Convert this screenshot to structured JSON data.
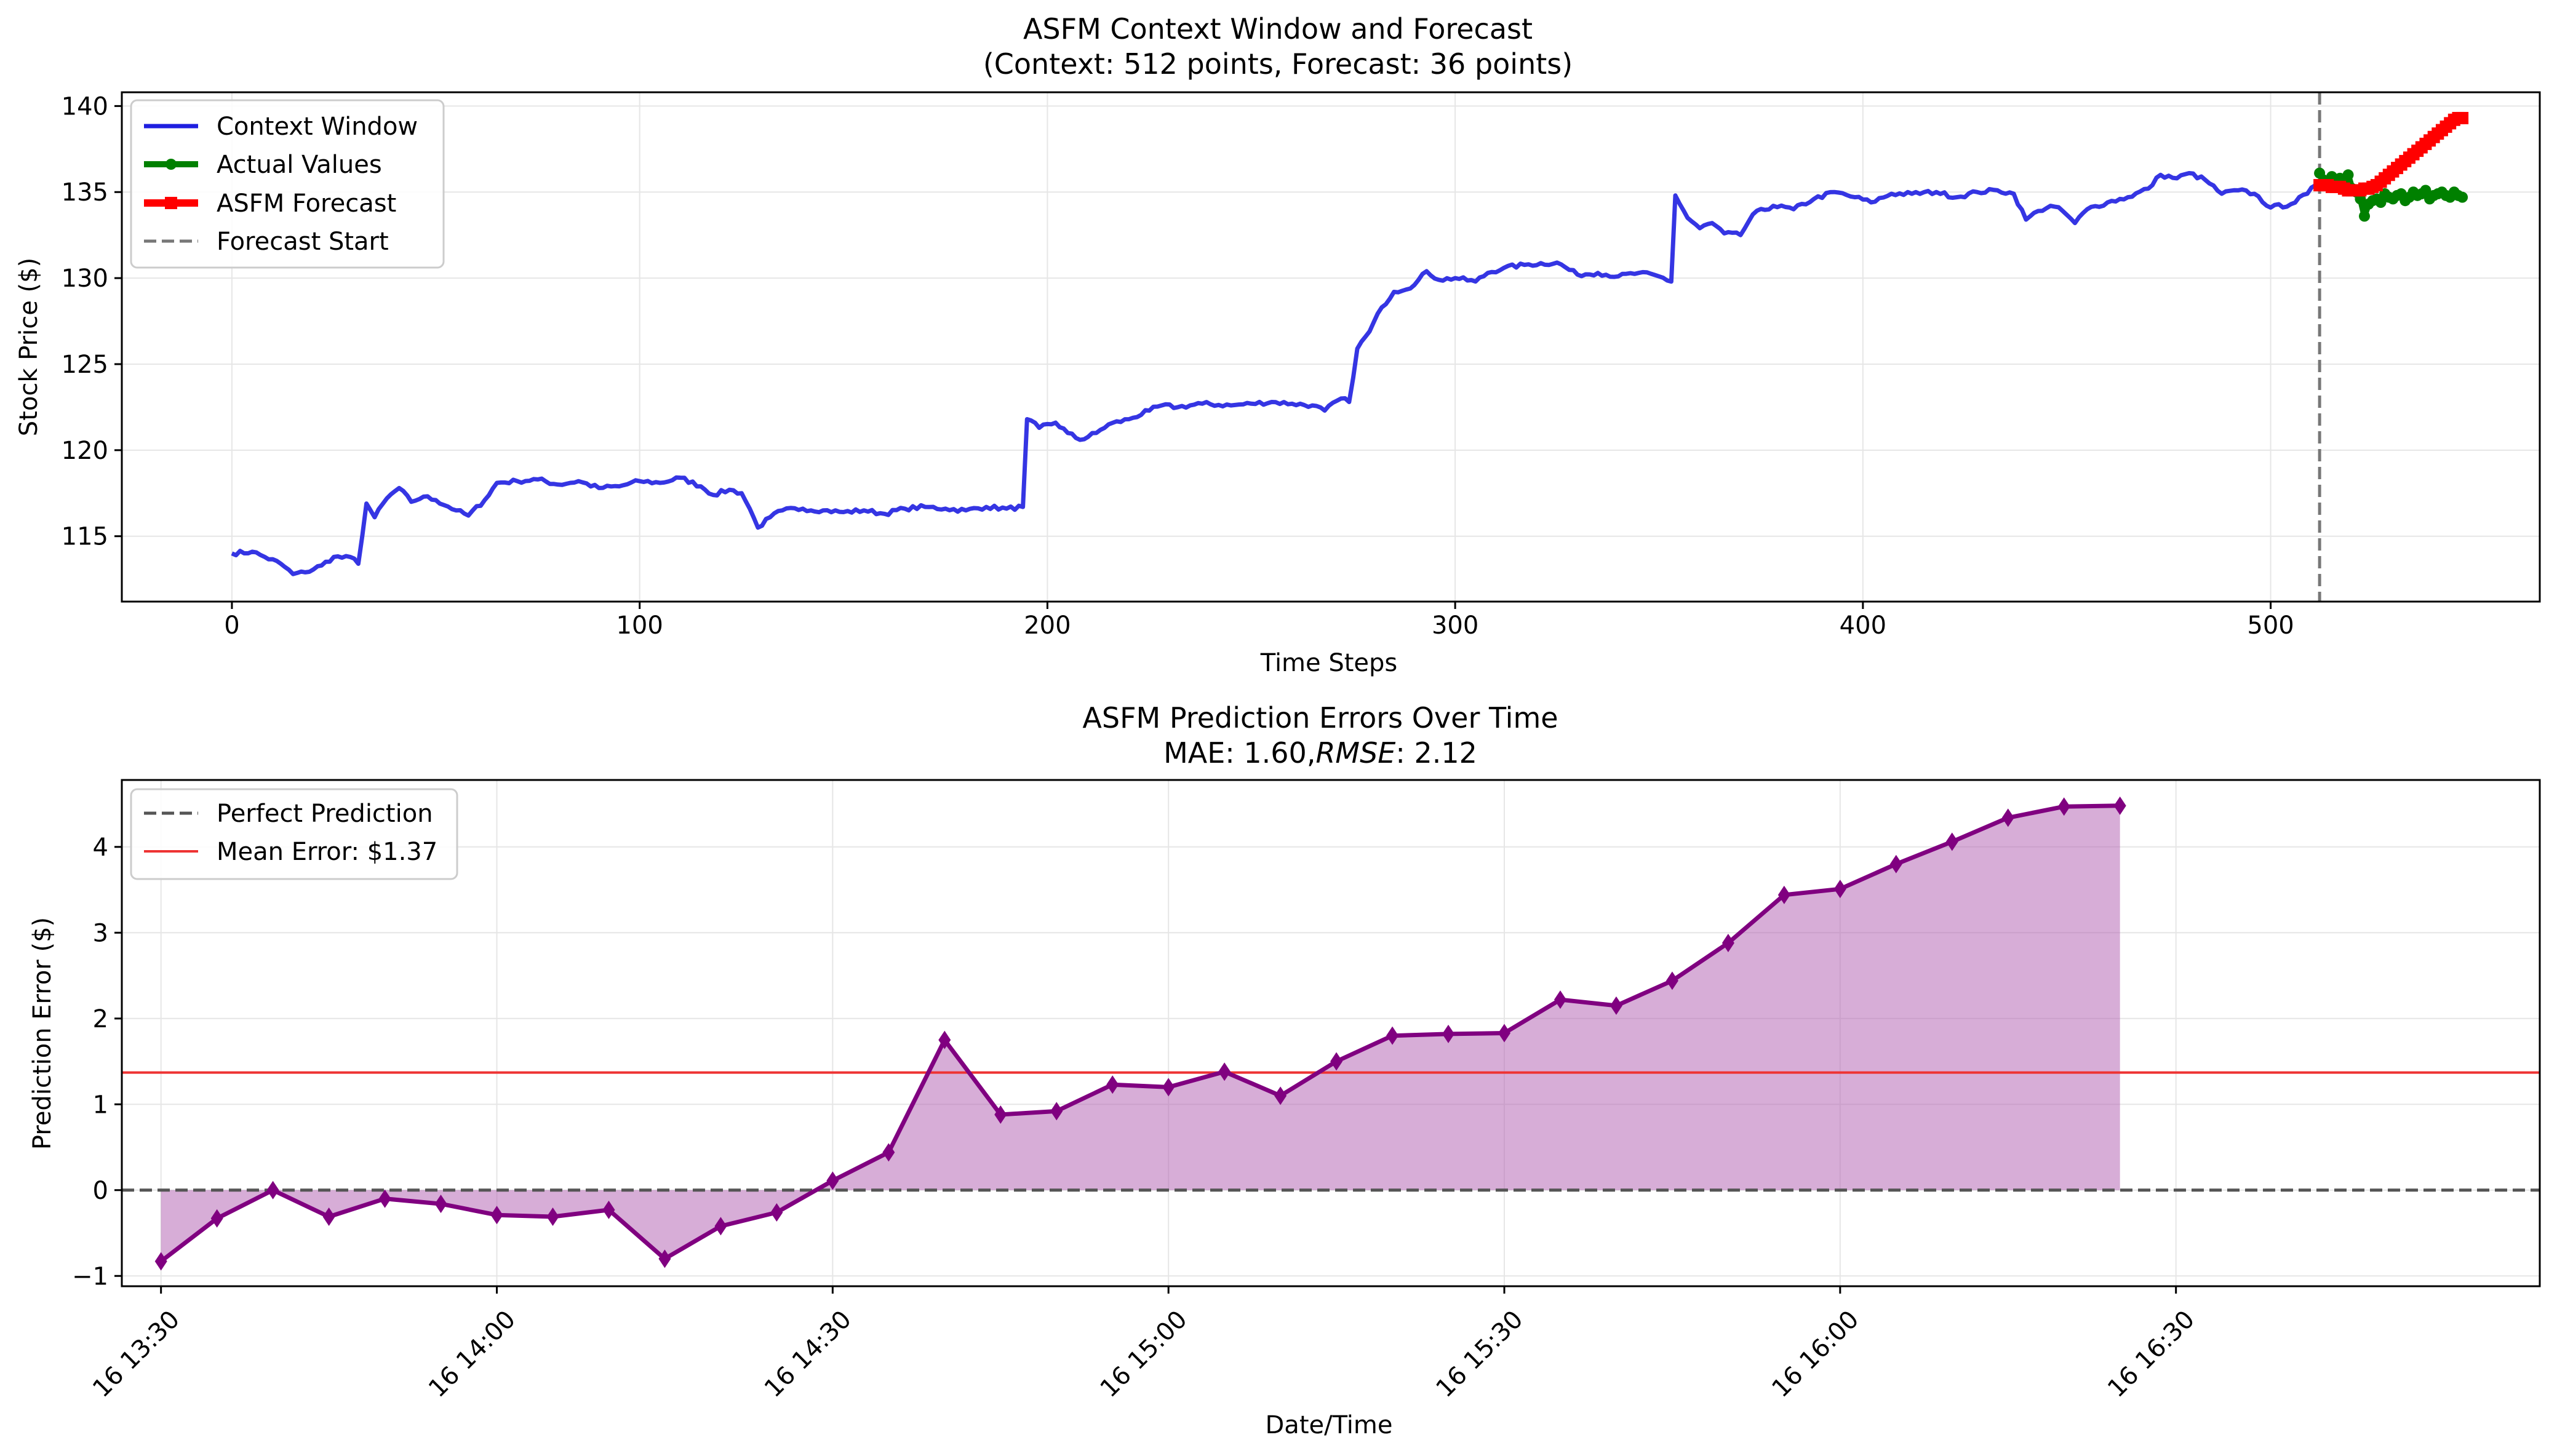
{
  "chart_data": [
    {
      "type": "line",
      "title": "ASFM Context Window and Forecast",
      "subtitle": "(Context: 512 points, Forecast: 36 points)",
      "xlabel": "Time Steps",
      "ylabel": "Stock Price ($)",
      "xlim": [
        -27,
        566
      ],
      "ylim": [
        111.2,
        140.8
      ],
      "xticks": [
        0,
        100,
        200,
        300,
        400,
        500
      ],
      "xtick_labels": [
        "0",
        "100",
        "200",
        "300",
        "400",
        "500"
      ],
      "yticks": [
        115,
        120,
        125,
        130,
        135,
        140
      ],
      "ytick_labels": [
        "115",
        "120",
        "125",
        "130",
        "135",
        "140"
      ],
      "grid": true,
      "legend_position": "top-left",
      "legend": [
        "Context Window",
        "Actual Values",
        "ASFM Forecast",
        "Forecast Start"
      ],
      "forecast_start": 512,
      "series": [
        {
          "name": "Context Window",
          "color": "#1f1fe0",
          "keypoints": [
            [
              0,
              114.0
            ],
            [
              5,
              114.1
            ],
            [
              8,
              113.8
            ],
            [
              12,
              113.4
            ],
            [
              15,
              112.8
            ],
            [
              18,
              112.9
            ],
            [
              22,
              113.3
            ],
            [
              25,
              113.8
            ],
            [
              30,
              113.7
            ],
            [
              31,
              113.4
            ],
            [
              33,
              116.9
            ],
            [
              35,
              116.1
            ],
            [
              38,
              117.2
            ],
            [
              41,
              117.8
            ],
            [
              44,
              117.0
            ],
            [
              47,
              117.3
            ],
            [
              50,
              117.1
            ],
            [
              55,
              116.5
            ],
            [
              58,
              116.2
            ],
            [
              62,
              117.1
            ],
            [
              65,
              118.1
            ],
            [
              70,
              118.2
            ],
            [
              75,
              118.3
            ],
            [
              80,
              118.0
            ],
            [
              85,
              118.2
            ],
            [
              90,
              117.8
            ],
            [
              95,
              117.9
            ],
            [
              100,
              118.2
            ],
            [
              105,
              118.1
            ],
            [
              110,
              118.4
            ],
            [
              115,
              117.9
            ],
            [
              118,
              117.4
            ],
            [
              122,
              117.7
            ],
            [
              125,
              117.5
            ],
            [
              127,
              116.6
            ],
            [
              129,
              115.5
            ],
            [
              132,
              116.1
            ],
            [
              135,
              116.5
            ],
            [
              140,
              116.6
            ],
            [
              145,
              116.5
            ],
            [
              150,
              116.4
            ],
            [
              155,
              116.5
            ],
            [
              160,
              116.3
            ],
            [
              165,
              116.6
            ],
            [
              170,
              116.7
            ],
            [
              175,
              116.6
            ],
            [
              180,
              116.5
            ],
            [
              185,
              116.7
            ],
            [
              190,
              116.6
            ],
            [
              194,
              116.7
            ],
            [
              195,
              121.8
            ],
            [
              198,
              121.3
            ],
            [
              202,
              121.6
            ],
            [
              205,
              121.0
            ],
            [
              208,
              120.6
            ],
            [
              212,
              121.0
            ],
            [
              215,
              121.5
            ],
            [
              220,
              121.8
            ],
            [
              225,
              122.3
            ],
            [
              228,
              122.6
            ],
            [
              232,
              122.5
            ],
            [
              238,
              122.7
            ],
            [
              245,
              122.6
            ],
            [
              250,
              122.7
            ],
            [
              255,
              122.8
            ],
            [
              260,
              122.7
            ],
            [
              265,
              122.6
            ],
            [
              268,
              122.3
            ],
            [
              272,
              123.0
            ],
            [
              274,
              122.8
            ],
            [
              276,
              125.9
            ],
            [
              279,
              126.9
            ],
            [
              282,
              128.3
            ],
            [
              285,
              129.2
            ],
            [
              290,
              129.6
            ],
            [
              293,
              130.4
            ],
            [
              296,
              129.9
            ],
            [
              300,
              130.0
            ],
            [
              305,
              129.8
            ],
            [
              308,
              130.3
            ],
            [
              312,
              130.6
            ],
            [
              318,
              130.8
            ],
            [
              325,
              130.9
            ],
            [
              330,
              130.2
            ],
            [
              335,
              130.3
            ],
            [
              340,
              130.1
            ],
            [
              345,
              130.3
            ],
            [
              350,
              130.1
            ],
            [
              353,
              129.8
            ],
            [
              354,
              134.8
            ],
            [
              357,
              133.5
            ],
            [
              360,
              132.9
            ],
            [
              363,
              133.2
            ],
            [
              366,
              132.6
            ],
            [
              370,
              132.5
            ],
            [
              373,
              133.7
            ],
            [
              378,
              134.2
            ],
            [
              383,
              134.0
            ],
            [
              388,
              134.6
            ],
            [
              393,
              135.0
            ],
            [
              398,
              134.7
            ],
            [
              402,
              134.4
            ],
            [
              407,
              134.9
            ],
            [
              412,
              134.9
            ],
            [
              418,
              135.0
            ],
            [
              423,
              134.7
            ],
            [
              428,
              135.0
            ],
            [
              433,
              135.1
            ],
            [
              437,
              134.9
            ],
            [
              440,
              133.4
            ],
            [
              443,
              133.9
            ],
            [
              446,
              134.2
            ],
            [
              449,
              133.9
            ],
            [
              452,
              133.2
            ],
            [
              455,
              134.0
            ],
            [
              460,
              134.4
            ],
            [
              465,
              134.7
            ],
            [
              470,
              135.2
            ],
            [
              473,
              136.0
            ],
            [
              477,
              135.8
            ],
            [
              480,
              136.1
            ],
            [
              484,
              135.7
            ],
            [
              488,
              134.9
            ],
            [
              492,
              135.1
            ],
            [
              496,
              134.9
            ],
            [
              500,
              134.1
            ],
            [
              505,
              134.3
            ],
            [
              509,
              134.9
            ],
            [
              511,
              135.4
            ]
          ]
        },
        {
          "name": "Actual Values",
          "color": "#008000",
          "x_start": 512,
          "values": [
            136.1,
            135.7,
            135.5,
            135.9,
            135.4,
            135.8,
            135.6,
            136.0,
            135.2,
            135.0,
            134.6,
            133.6,
            134.3,
            134.5,
            134.6,
            134.4,
            134.9,
            134.7,
            134.6,
            134.8,
            134.9,
            134.5,
            134.7,
            135.0,
            134.8,
            134.9,
            135.1,
            134.6,
            134.8,
            134.9,
            135.0,
            134.8,
            134.7,
            135.0,
            134.8,
            134.7
          ]
        },
        {
          "name": "ASFM Forecast",
          "color": "#ff0000",
          "x_start": 512,
          "values": [
            135.4,
            135.4,
            135.4,
            135.3,
            135.3,
            135.3,
            135.2,
            135.1,
            135.1,
            135.1,
            135.1,
            135.2,
            135.2,
            135.3,
            135.4,
            135.6,
            135.8,
            136.0,
            136.2,
            136.4,
            136.6,
            136.8,
            137.0,
            137.2,
            137.4,
            137.6,
            137.8,
            138.0,
            138.2,
            138.4,
            138.6,
            138.8,
            139.0,
            139.2,
            139.3,
            139.3
          ]
        }
      ]
    },
    {
      "type": "line",
      "title": "ASFM Prediction Errors Over Time",
      "subtitle_prefix": "MAE: 1.60,",
      "subtitle_italic": "RMSE",
      "subtitle_suffix": ": 2.12",
      "xlabel": "Date/Time",
      "ylabel": "Prediction Error ($)",
      "xlim_minutes": [
        -7,
        425
      ],
      "ylim": [
        -1.12,
        4.78
      ],
      "xtick_minutes": [
        0,
        60,
        120,
        180,
        240,
        300,
        360
      ],
      "xtick_labels": [
        "16 13:30",
        "16 14:00",
        "16 14:30",
        "16 15:00",
        "16 15:30",
        "16 16:00",
        "16 16:30"
      ],
      "yticks": [
        -1,
        0,
        1,
        2,
        3,
        4
      ],
      "ytick_labels": [
        "−1",
        "0",
        "1",
        "2",
        "3",
        "4"
      ],
      "grid": true,
      "legend_position": "top-left",
      "legend": [
        "Perfect Prediction",
        "Mean Error: $1.37"
      ],
      "mean_error": 1.37,
      "perfect_prediction": 0,
      "series": [
        {
          "name": "ASFM Prediction Errors",
          "color": "#800080",
          "fill_color": "#b05cb0",
          "x_minutes": [
            0,
            10,
            20,
            30,
            40,
            50,
            60,
            70,
            80,
            90,
            100,
            110,
            120,
            130,
            140,
            150,
            160,
            170,
            180,
            190,
            200,
            210,
            220,
            230,
            240,
            250,
            260,
            270,
            280,
            290,
            300,
            310,
            320,
            330,
            340,
            350
          ],
          "values": [
            -0.83,
            -0.33,
            0.0,
            -0.31,
            -0.1,
            -0.16,
            -0.29,
            -0.31,
            -0.23,
            -0.8,
            -0.42,
            -0.26,
            0.11,
            0.44,
            1.75,
            0.88,
            0.92,
            1.23,
            1.2,
            1.38,
            1.1,
            1.5,
            1.8,
            1.82,
            1.83,
            2.22,
            2.15,
            2.44,
            2.88,
            3.44,
            3.51,
            3.8,
            4.06,
            4.34,
            4.47,
            4.48
          ]
        }
      ]
    }
  ]
}
